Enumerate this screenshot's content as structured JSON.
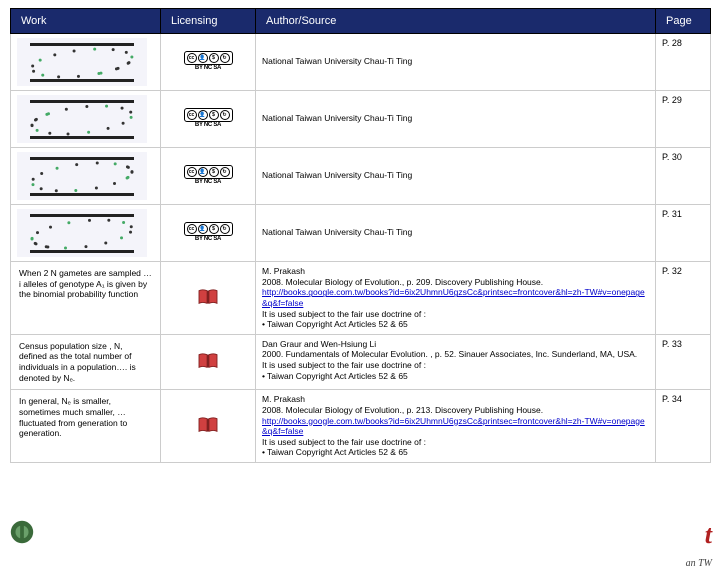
{
  "header": {
    "work": "Work",
    "licensing": "Licensing",
    "source": "Author/Source",
    "page": "Page"
  },
  "rows": [
    {
      "work_type": "thumb",
      "licensing": "cc",
      "source_type": "simple",
      "source_text": "National Taiwan University Chau-Ti Ting",
      "page": "P. 28"
    },
    {
      "work_type": "thumb",
      "licensing": "cc",
      "source_type": "simple",
      "source_text": "National Taiwan University Chau-Ti Ting",
      "page": "P. 29"
    },
    {
      "work_type": "thumb",
      "licensing": "cc",
      "source_type": "simple",
      "source_text": "National Taiwan University Chau-Ti Ting",
      "page": "P. 30"
    },
    {
      "work_type": "thumb",
      "licensing": "cc",
      "source_type": "simple",
      "source_text": "National Taiwan University Chau-Ti Ting",
      "page": "P. 31"
    },
    {
      "work_type": "text",
      "work_text": "When 2 N gametes are sampled …i alleles of genotype A₁ is given by the binomial probability function",
      "licensing": "book",
      "source_type": "full",
      "author": "M. Prakash",
      "citation": "2008. Molecular Biology of Evolution., p. 209. Discovery Publishing House.",
      "url": "http://books.google.com.tw/books?id=6ix2UhmnU6gzsCc&printsec=frontcover&hl=zh-TW#v=onepage&q&f=false",
      "fairuse_intro": "It is used subject to the fair use doctrine of :",
      "fairuse_item": "Taiwan Copyright Act Articles 52 & 65",
      "page": "P. 32"
    },
    {
      "work_type": "text",
      "work_text": "Census population size , N, defined as the total number of individuals in a population…. is denoted by Nₑ.",
      "licensing": "book",
      "source_type": "full_nolink",
      "author": "Dan Graur and Wen-Hsiung Li",
      "citation": "2000. Fundamentals of Molecular Evolution. , p. 52. Sinauer Associates, Inc. Sunderland, MA, USA.",
      "fairuse_intro": "It is used subject to the fair use doctrine of :",
      "fairuse_item": "Taiwan Copyright Act Articles 52 & 65",
      "page": "P. 33"
    },
    {
      "work_type": "text",
      "work_text": "In general, Nₑ is smaller, sometimes much smaller, …fluctuated from generation to generation.",
      "licensing": "book",
      "source_type": "full",
      "author": "M. Prakash",
      "citation": "2008. Molecular Biology of Evolution., p. 213. Discovery Publishing House.",
      "url": "http://books.google.com.tw/books?id=6ix2UhmnU6gzsCc&printsec=frontcover&hl=zh-TW#v=onepage&q&f=false",
      "fairuse_intro": "It is used subject to the fair use doctrine of :",
      "fairuse_item": "Taiwan Copyright Act Articles 52 & 65",
      "page": "P. 34"
    }
  ],
  "cc_label": "BY  NC  SA",
  "footer_right": "an TW",
  "colors": {
    "header_bg": "#1a2a6c",
    "header_fg": "#ffffff",
    "border": "#cccccc",
    "link": "#0000cc"
  }
}
